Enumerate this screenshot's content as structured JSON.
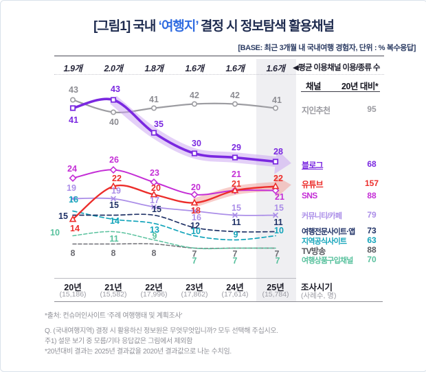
{
  "header": {
    "title_prefix": "[그림1] 국내 ",
    "title_highlight": "‘여행지’",
    "title_suffix": " 결정 시 정보탐색 활용채널",
    "base_note": "[BASE: 최근 3개월 내 국내여행 경험자, 단위 : % 복수응답]"
  },
  "averages": {
    "values": [
      "1.9개",
      "2.0개",
      "1.8개",
      "1.6개",
      "1.6개",
      "1.6개"
    ],
    "label": "◀평균 이용채널 이용/종류 수"
  },
  "table": {
    "col_channel": "채널",
    "col_vs2020": "20년 대비*",
    "rows": [
      {
        "channel": "지인추천",
        "value": "95",
        "color": "#9a9aa0",
        "underline": false
      },
      {
        "channel": "블로그",
        "value": "68",
        "color": "#7a28e0",
        "underline": true
      },
      {
        "channel": "유튜브",
        "value": "157",
        "color": "#ec2d2a",
        "underline": false
      },
      {
        "channel": "SNS",
        "value": "88",
        "color": "#c42ed6",
        "underline": false
      },
      {
        "channel": "커뮤니티/카페",
        "value": "79",
        "color": "#ab8ee8",
        "underline": false
      },
      {
        "channel": "여행전문사이트·앱",
        "value": "73",
        "color": "#1f3166",
        "underline": false
      },
      {
        "channel": "지역공식사이트",
        "value": "63",
        "color": "#12a4ba",
        "underline": false
      },
      {
        "channel": "TV방송",
        "value": "88",
        "color": "#55565c",
        "underline": false
      },
      {
        "channel": "여행상품구입채널",
        "value": "70",
        "color": "#58c19d",
        "underline": false
      }
    ]
  },
  "axis": {
    "years": [
      "20년",
      "21년",
      "22년",
      "23년",
      "24년",
      "25년"
    ],
    "samples": [
      "(15,186)",
      "(15,582)",
      "(17,996)",
      "(17,862)",
      "(17,614)",
      "(15,784)"
    ],
    "survey_label": "조사시기",
    "survey_sub": "(사례수, 명)"
  },
  "footnotes": [
    "*출처: 컨슈머인사이트 ‘주례 여행행태 및 계획조사’",
    "Q. (국내여행지역) 결정 시 활용하신 정보원은 무엇무엇입니까? 모두 선택해 주십시오.",
    "주1) 설문 보기 중 모름/기타 응답값은 그림에서 제외함",
    "*20년대비 결과는 2025년 결과값을 2020년 결과값으로 나눈 수치임."
  ],
  "chart_data": {
    "type": "line",
    "categories": [
      "20년",
      "21년",
      "22년",
      "23년",
      "24년",
      "25년"
    ],
    "unit": "%",
    "ylim": [
      0,
      50
    ],
    "grid": false,
    "highlight_category": "25년",
    "legend_position": "right-table",
    "series": [
      {
        "name": "지인추천",
        "values": [
          43,
          40,
          41,
          42,
          42,
          41
        ],
        "vs2020": 95,
        "color": "#9c9ca1",
        "label_color": "#8d8d93",
        "style": "solid",
        "marker": "circle",
        "width": 2.2,
        "label_offsets": [
          [
            1,
            -15
          ],
          [
            1,
            14
          ],
          [
            0,
            -13
          ],
          [
            0,
            -13
          ],
          [
            0,
            -13
          ],
          [
            2,
            -12
          ]
        ]
      },
      {
        "name": "블로그",
        "values": [
          41,
          43,
          35,
          30,
          29,
          28
        ],
        "vs2020": 68,
        "color": "#7a28e0",
        "label_color": "#7a28e0",
        "style": "solid",
        "marker": "square",
        "width": 3.6,
        "band": {
          "from_index": 1,
          "color": "#c9a2f2",
          "width": 15,
          "opacity": 0.5
        },
        "label_offsets": [
          [
            1,
            17
          ],
          [
            3,
            -16
          ],
          [
            7,
            -13
          ],
          [
            3,
            -15
          ],
          [
            2,
            -15
          ],
          [
            4,
            -15
          ]
        ]
      },
      {
        "name": "SNS",
        "values": [
          24,
          26,
          23,
          20,
          21,
          21
        ],
        "vs2020": 88,
        "color": "#c42ed6",
        "label_color": "#c42ed6",
        "style": "solid",
        "marker": "diamond",
        "width": 2,
        "label_offsets": [
          [
            -1,
            -14
          ],
          [
            1,
            -15
          ],
          [
            1,
            -14
          ],
          [
            2,
            -11
          ],
          [
            2,
            -24
          ],
          [
            6,
            9
          ]
        ]
      },
      {
        "name": "유튜브",
        "values": [
          14,
          22,
          20,
          18,
          21,
          22
        ],
        "vs2020": 157,
        "color": "#ec2d2a",
        "label_color": "#ec2d2a",
        "style": "solid",
        "marker": "triangle",
        "width": 2.4,
        "band": {
          "from_index": 3,
          "color": "#f3a49e",
          "width": 13,
          "opacity": 0.55
        },
        "label_offsets": [
          [
            3,
            13
          ],
          [
            5,
            -12
          ],
          [
            3,
            -10
          ],
          [
            2,
            11
          ],
          [
            2,
            -10
          ],
          [
            4,
            -12
          ]
        ]
      },
      {
        "name": "커뮤니티/카페",
        "values": [
          19,
          19,
          17,
          16,
          15,
          15
        ],
        "vs2020": 79,
        "color": "#ab8ee8",
        "label_color": "#ab8ee8",
        "style": "solid",
        "marker": "x",
        "width": 1.8,
        "label_offsets": [
          [
            -2,
            -16
          ],
          [
            4,
            -12
          ],
          [
            1,
            -10
          ],
          [
            3,
            9
          ],
          [
            2,
            -11
          ],
          [
            5,
            -11
          ]
        ]
      },
      {
        "name": "여행전문사이트·앱",
        "values": [
          15,
          15,
          15,
          12,
          11,
          11
        ],
        "vs2020": 73,
        "color": "#1f3166",
        "label_color": "#1f3166",
        "style": "dashed",
        "marker": "none",
        "width": 1.7,
        "label_offsets": [
          [
            -14,
            1
          ],
          [
            1,
            -15
          ],
          [
            4,
            -9
          ],
          [
            1,
            -3
          ],
          [
            2,
            -14
          ],
          [
            4,
            -14
          ]
        ]
      },
      {
        "name": "지역공식사이트",
        "values": [
          16,
          14,
          13,
          10,
          9,
          10
        ],
        "vs2020": 63,
        "color": "#12a4ba",
        "label_color": "#12a4ba",
        "style": "dashed",
        "marker": "none",
        "width": 1.7,
        "label_offsets": [
          [
            1,
            -17
          ],
          [
            2,
            2
          ],
          [
            1,
            9
          ],
          [
            2,
            -7
          ],
          [
            1,
            -8
          ],
          [
            5,
            -8
          ]
        ]
      },
      {
        "name": "TV방송",
        "values": [
          8,
          8,
          8,
          7,
          7,
          7
        ],
        "vs2020": 88,
        "color": "#6d6d73",
        "label_color": "#6d6d73",
        "style": "dashed",
        "marker": "none",
        "width": 1.5,
        "label_offsets": [
          [
            0,
            13
          ],
          [
            0,
            13
          ],
          [
            0,
            13
          ],
          [
            0,
            8
          ],
          [
            0,
            8
          ],
          [
            2,
            8
          ]
        ]
      },
      {
        "name": "여행상품구입채널",
        "values": [
          10,
          11,
          9,
          7,
          7,
          7
        ],
        "vs2020": 70,
        "color": "#58c19d",
        "label_color": "#58c19d",
        "style": "dashed",
        "marker": "none",
        "width": 1.5,
        "label_offsets": [
          [
            -26,
            -5
          ],
          [
            1,
            10
          ],
          [
            1,
            -6
          ],
          [
            0,
            18
          ],
          [
            0,
            18
          ],
          [
            3,
            18
          ]
        ]
      }
    ]
  }
}
